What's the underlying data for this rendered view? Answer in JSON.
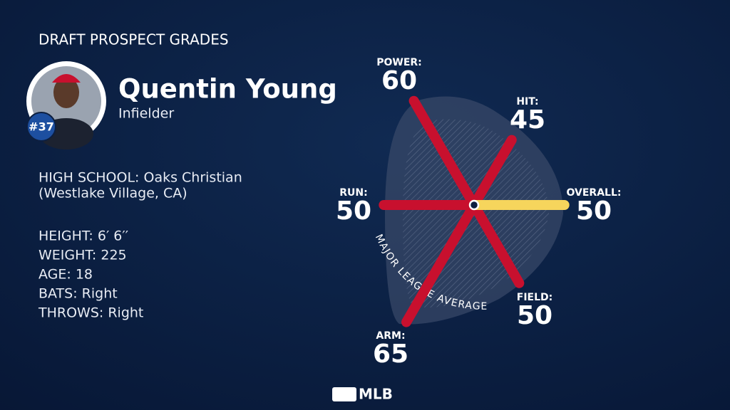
{
  "header": {
    "title": "DRAFT PROSPECT GRADES",
    "number": "#37",
    "name": "Quentin Young",
    "position": "Infielder"
  },
  "bio": {
    "school": "HIGH SCHOOL: Oaks Christian",
    "location": "(Westlake Village, CA)",
    "stats": [
      "HEIGHT: 6′ 6′′",
      "WEIGHT: 225",
      "AGE: 18",
      "BATS: Right",
      "THROWS: Right"
    ]
  },
  "brand": "MLB",
  "chart_data": {
    "type": "radial",
    "categories": [
      "POWER:",
      "HIT:",
      "OVERALL:",
      "FIELD:",
      "ARM:",
      "RUN:"
    ],
    "values": [
      60,
      45,
      50,
      50,
      65,
      50
    ],
    "colors": [
      "#c8102e",
      "#c8102e",
      "#f6d55c",
      "#c8102e",
      "#c8102e",
      "#c8102e"
    ],
    "rlim": [
      20,
      65
    ],
    "average_label": "MAJOR LEAGUE AVERAGE"
  }
}
